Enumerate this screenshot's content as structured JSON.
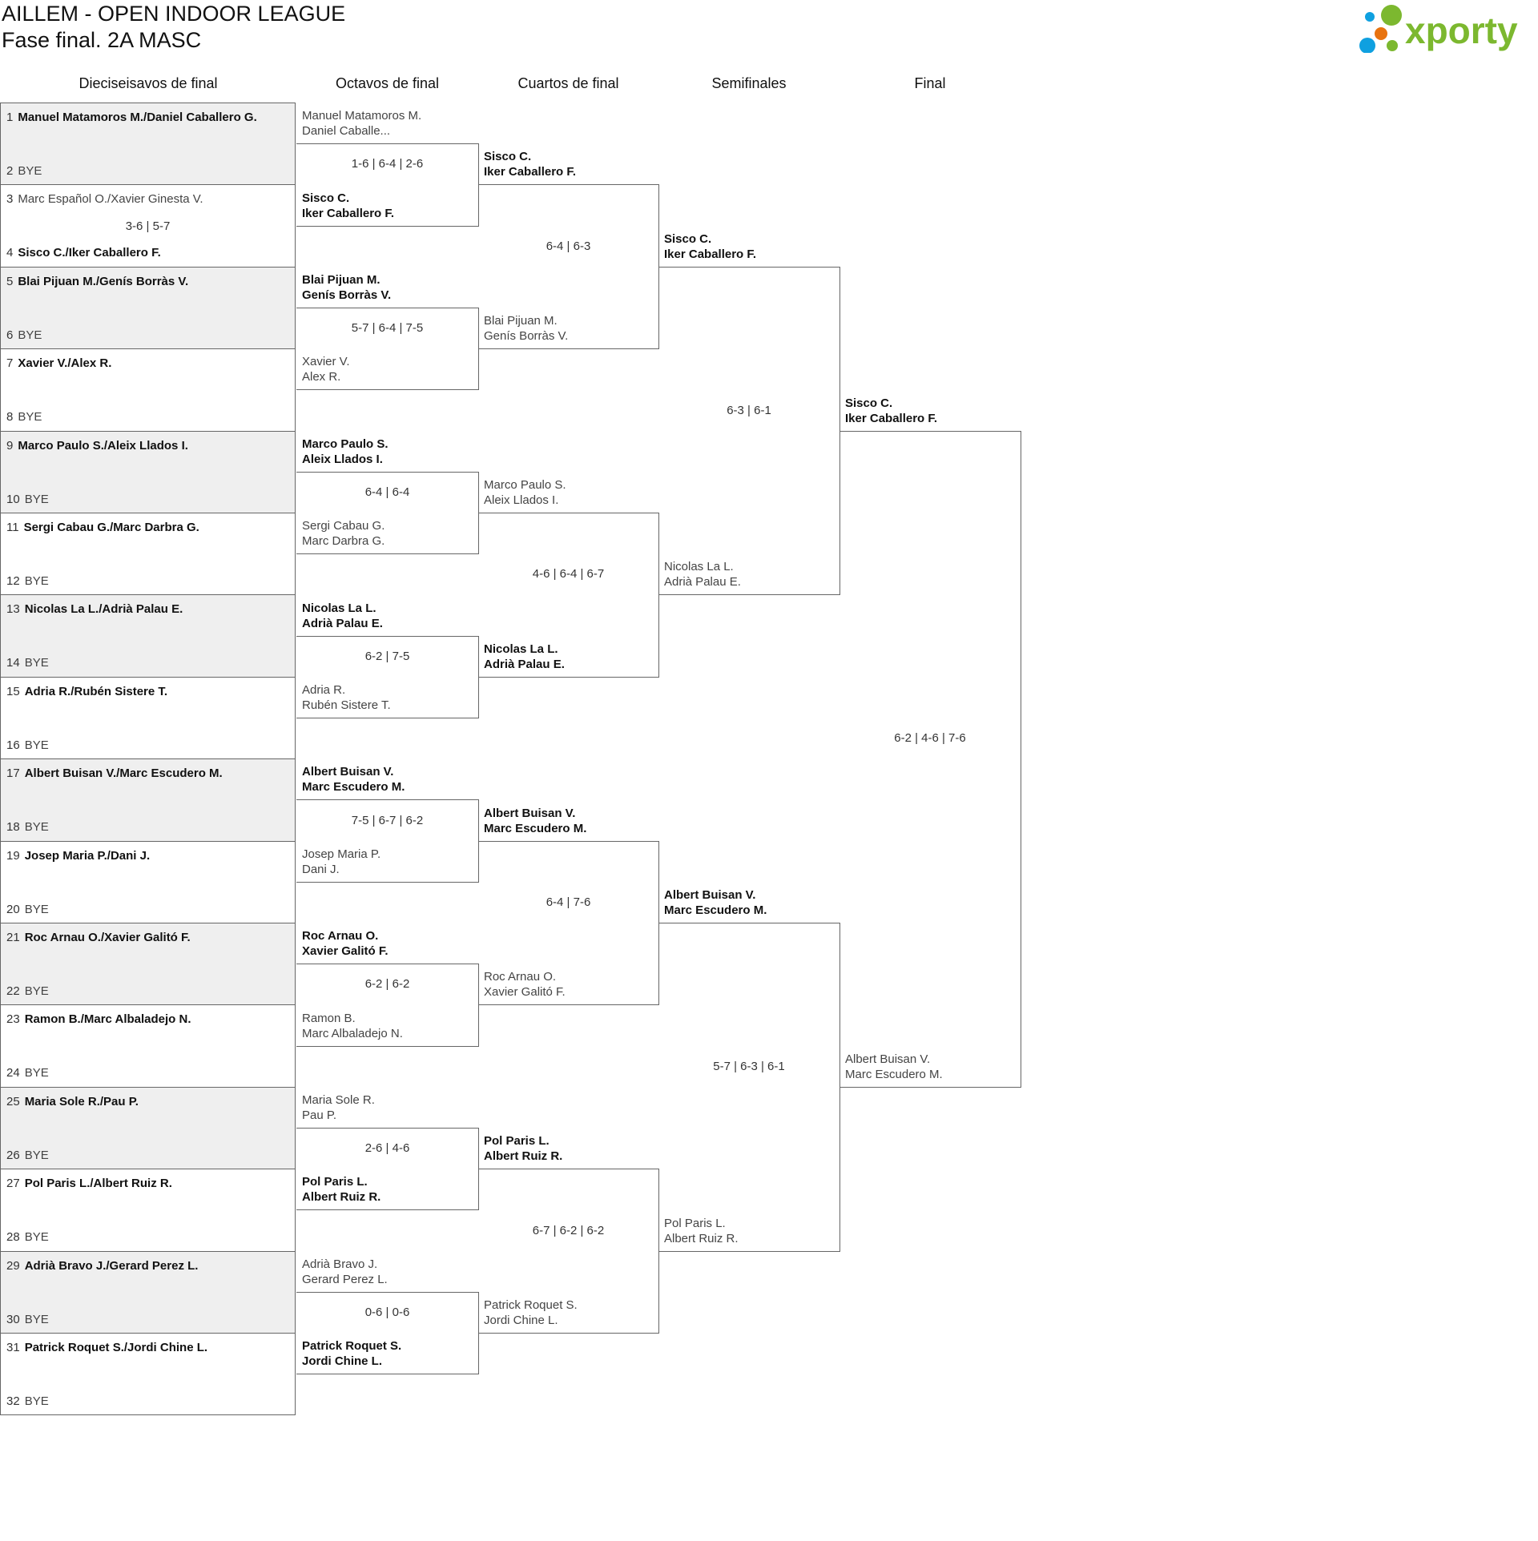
{
  "header": {
    "title": "AILLEM - OPEN INDOOR LEAGUE",
    "subtitle": "Fase final. 2A MASC",
    "logo_text": "xporty",
    "logo_colors": {
      "green": "#7cb82f",
      "blue": "#0fa0e0",
      "orange": "#e8730f"
    }
  },
  "colors": {
    "row_alt_bg": "#efefef",
    "line": "#666666"
  },
  "rounds": [
    "Dieciseisavos de final",
    "Octavos de final",
    "Cuartos de final",
    "Semifinales",
    "Final"
  ],
  "round1": [
    {
      "slots": [
        {
          "seed": "1",
          "name": "Manuel Matamoros M./Daniel Caballero G.",
          "winner": true
        },
        {
          "seed": "2",
          "name": "BYE",
          "winner": false
        }
      ],
      "score": ""
    },
    {
      "slots": [
        {
          "seed": "3",
          "name": "Marc Español O./Xavier Ginesta V.",
          "winner": false
        },
        {
          "seed": "4",
          "name": "Sisco C./Iker Caballero F.",
          "winner": true
        }
      ],
      "score": "3-6 | 5-7"
    },
    {
      "slots": [
        {
          "seed": "5",
          "name": "Blai Pijuan M./Genís Borràs V.",
          "winner": true
        },
        {
          "seed": "6",
          "name": "BYE",
          "winner": false
        }
      ],
      "score": ""
    },
    {
      "slots": [
        {
          "seed": "7",
          "name": "Xavier V./Alex R.",
          "winner": true
        },
        {
          "seed": "8",
          "name": "BYE",
          "winner": false
        }
      ],
      "score": ""
    },
    {
      "slots": [
        {
          "seed": "9",
          "name": "Marco Paulo S./Aleix Llados I.",
          "winner": true
        },
        {
          "seed": "10",
          "name": "BYE",
          "winner": false
        }
      ],
      "score": ""
    },
    {
      "slots": [
        {
          "seed": "11",
          "name": "Sergi Cabau G./Marc Darbra G.",
          "winner": true
        },
        {
          "seed": "12",
          "name": "BYE",
          "winner": false
        }
      ],
      "score": ""
    },
    {
      "slots": [
        {
          "seed": "13",
          "name": "Nicolas La L./Adrià Palau E.",
          "winner": true
        },
        {
          "seed": "14",
          "name": "BYE",
          "winner": false
        }
      ],
      "score": ""
    },
    {
      "slots": [
        {
          "seed": "15",
          "name": "Adria R./Rubén Sistere T.",
          "winner": true
        },
        {
          "seed": "16",
          "name": "BYE",
          "winner": false
        }
      ],
      "score": ""
    },
    {
      "slots": [
        {
          "seed": "17",
          "name": "Albert Buisan V./Marc Escudero M.",
          "winner": true
        },
        {
          "seed": "18",
          "name": "BYE",
          "winner": false
        }
      ],
      "score": ""
    },
    {
      "slots": [
        {
          "seed": "19",
          "name": "Josep Maria P./Dani J.",
          "winner": true
        },
        {
          "seed": "20",
          "name": "BYE",
          "winner": false
        }
      ],
      "score": ""
    },
    {
      "slots": [
        {
          "seed": "21",
          "name": "Roc Arnau O./Xavier Galitó F.",
          "winner": true
        },
        {
          "seed": "22",
          "name": "BYE",
          "winner": false
        }
      ],
      "score": ""
    },
    {
      "slots": [
        {
          "seed": "23",
          "name": "Ramon B./Marc Albaladejo N.",
          "winner": true
        },
        {
          "seed": "24",
          "name": "BYE",
          "winner": false
        }
      ],
      "score": ""
    },
    {
      "slots": [
        {
          "seed": "25",
          "name": "Maria Sole R./Pau P.",
          "winner": true
        },
        {
          "seed": "26",
          "name": "BYE",
          "winner": false
        }
      ],
      "score": ""
    },
    {
      "slots": [
        {
          "seed": "27",
          "name": "Pol Paris L./Albert Ruiz R.",
          "winner": true
        },
        {
          "seed": "28",
          "name": "BYE",
          "winner": false
        }
      ],
      "score": ""
    },
    {
      "slots": [
        {
          "seed": "29",
          "name": "Adrià Bravo J./Gerard Perez L.",
          "winner": true
        },
        {
          "seed": "30",
          "name": "BYE",
          "winner": false
        }
      ],
      "score": ""
    },
    {
      "slots": [
        {
          "seed": "31",
          "name": "Patrick Roquet S./Jordi Chine L.",
          "winner": true
        },
        {
          "seed": "32",
          "name": "BYE",
          "winner": false
        }
      ],
      "score": ""
    }
  ],
  "later_rounds": [
    [
      {
        "team1": {
          "lines": [
            "Manuel Matamoros M.",
            "Daniel Caballe..."
          ],
          "winner": false
        },
        "team2": {
          "lines": [
            "Sisco C.",
            "Iker Caballero F."
          ],
          "winner": true
        },
        "score": "1-6 | 6-4 | 2-6"
      },
      {
        "team1": {
          "lines": [
            "Blai Pijuan M.",
            "Genís Borràs V."
          ],
          "winner": true
        },
        "team2": {
          "lines": [
            "Xavier V.",
            "Alex R."
          ],
          "winner": false
        },
        "score": "5-7 | 6-4 | 7-5"
      },
      {
        "team1": {
          "lines": [
            "Marco Paulo S.",
            "Aleix Llados I."
          ],
          "winner": true
        },
        "team2": {
          "lines": [
            "Sergi Cabau G.",
            "Marc Darbra G."
          ],
          "winner": false
        },
        "score": "6-4 | 6-4"
      },
      {
        "team1": {
          "lines": [
            "Nicolas La L.",
            "Adrià Palau E."
          ],
          "winner": true
        },
        "team2": {
          "lines": [
            "Adria R.",
            "Rubén Sistere T."
          ],
          "winner": false
        },
        "score": "6-2 | 7-5"
      },
      {
        "team1": {
          "lines": [
            "Albert Buisan V.",
            "Marc Escudero M."
          ],
          "winner": true
        },
        "team2": {
          "lines": [
            "Josep Maria P.",
            "Dani J."
          ],
          "winner": false
        },
        "score": "7-5 | 6-7 | 6-2"
      },
      {
        "team1": {
          "lines": [
            "Roc Arnau O.",
            "Xavier Galitó F."
          ],
          "winner": true
        },
        "team2": {
          "lines": [
            "Ramon B.",
            "Marc Albaladejo N."
          ],
          "winner": false
        },
        "score": "6-2 | 6-2"
      },
      {
        "team1": {
          "lines": [
            "Maria Sole R.",
            "Pau P."
          ],
          "winner": false
        },
        "team2": {
          "lines": [
            "Pol Paris L.",
            "Albert Ruiz R."
          ],
          "winner": true
        },
        "score": "2-6 | 4-6"
      },
      {
        "team1": {
          "lines": [
            "Adrià Bravo J.",
            "Gerard Perez L."
          ],
          "winner": false
        },
        "team2": {
          "lines": [
            "Patrick Roquet S.",
            "Jordi Chine L."
          ],
          "winner": true
        },
        "score": "0-6 | 0-6"
      }
    ],
    [
      {
        "team1": {
          "lines": [
            "Sisco C.",
            "Iker Caballero F."
          ],
          "winner": true
        },
        "team2": {
          "lines": [
            "Blai Pijuan M.",
            "Genís Borràs V."
          ],
          "winner": false
        },
        "score": "6-4 | 6-3"
      },
      {
        "team1": {
          "lines": [
            "Marco Paulo S.",
            "Aleix Llados I."
          ],
          "winner": false
        },
        "team2": {
          "lines": [
            "Nicolas La L.",
            "Adrià Palau E."
          ],
          "winner": true
        },
        "score": "4-6 | 6-4 | 6-7"
      },
      {
        "team1": {
          "lines": [
            "Albert Buisan V.",
            "Marc Escudero M."
          ],
          "winner": true
        },
        "team2": {
          "lines": [
            "Roc Arnau O.",
            "Xavier Galitó F."
          ],
          "winner": false
        },
        "score": "6-4 | 7-6"
      },
      {
        "team1": {
          "lines": [
            "Pol Paris L.",
            "Albert Ruiz R."
          ],
          "winner": true
        },
        "team2": {
          "lines": [
            "Patrick Roquet S.",
            "Jordi Chine L."
          ],
          "winner": false
        },
        "score": "6-7 | 6-2 | 6-2"
      }
    ],
    [
      {
        "team1": {
          "lines": [
            "Sisco C.",
            "Iker Caballero F."
          ],
          "winner": true
        },
        "team2": {
          "lines": [
            "Nicolas La L.",
            "Adrià Palau E."
          ],
          "winner": false
        },
        "score": "6-3 | 6-1"
      },
      {
        "team1": {
          "lines": [
            "Albert Buisan V.",
            "Marc Escudero M."
          ],
          "winner": true
        },
        "team2": {
          "lines": [
            "Pol Paris L.",
            "Albert Ruiz R."
          ],
          "winner": false
        },
        "score": "5-7 | 6-3 | 6-1"
      }
    ],
    [
      {
        "team1": {
          "lines": [
            "Sisco C.",
            "Iker Caballero F."
          ],
          "winner": true
        },
        "team2": {
          "lines": [
            "Albert Buisan V.",
            "Marc Escudero M."
          ],
          "winner": false
        },
        "score": "6-2 | 4-6 | 7-6"
      }
    ]
  ]
}
